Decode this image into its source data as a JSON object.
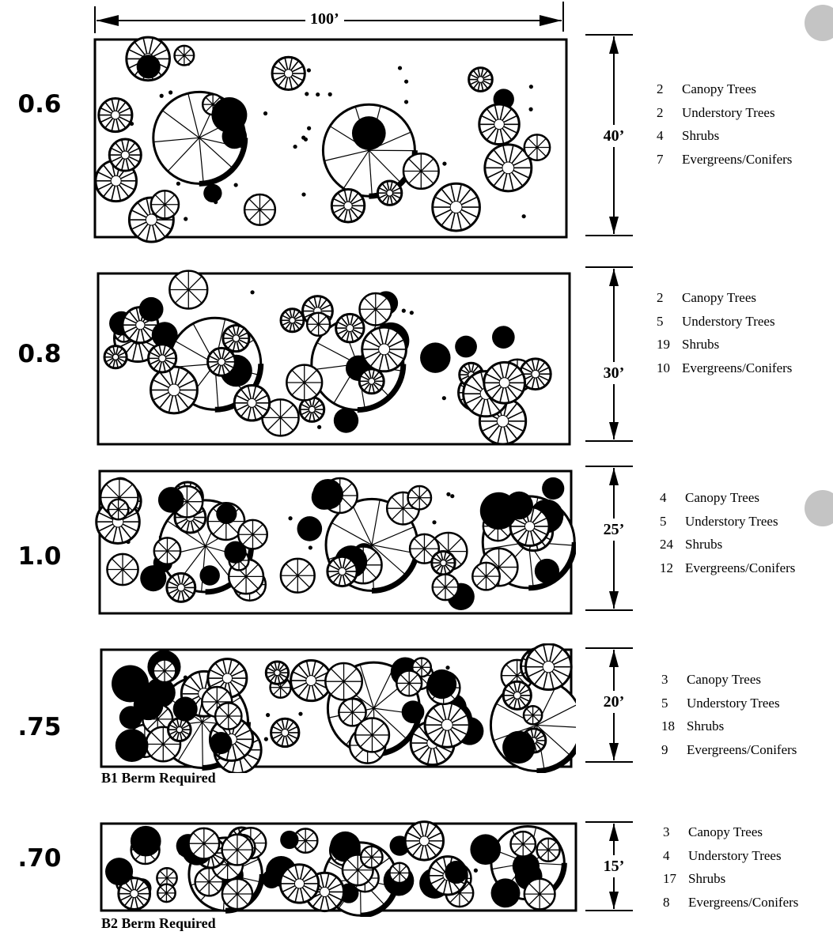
{
  "overall_width": "100’",
  "panels": [
    {
      "opacity": "0.6",
      "width": "40’",
      "berm_note": "",
      "counts": [
        {
          "qty": "2",
          "label": "Canopy Trees"
        },
        {
          "qty": "2",
          "label": "Understory Trees"
        },
        {
          "qty": "4",
          "label": "Shrubs"
        },
        {
          "qty": "7",
          "label": "Evergreens/Conifers"
        }
      ]
    },
    {
      "opacity": "0.8",
      "width": "30’",
      "berm_note": "",
      "counts": [
        {
          "qty": "2",
          "label": "Canopy Trees"
        },
        {
          "qty": "5",
          "label": "Understory Trees"
        },
        {
          "qty": "19",
          "label": "Shrubs"
        },
        {
          "qty": "10",
          "label": "Evergreens/Conifers"
        }
      ]
    },
    {
      "opacity": "1.0",
      "width": "25’",
      "berm_note": "",
      "counts": [
        {
          "qty": "4",
          "label": "Canopy Trees"
        },
        {
          "qty": "5",
          "label": "Understory Trees"
        },
        {
          "qty": "24",
          "label": "Shrubs"
        },
        {
          "qty": "12",
          "label": "Evergreens/Conifers"
        }
      ]
    },
    {
      "opacity": ".75",
      "width": "20’",
      "berm_note": "B1 Berm Required",
      "counts": [
        {
          "qty": "3",
          "label": "Canopy Trees"
        },
        {
          "qty": "5",
          "label": "Understory Trees"
        },
        {
          "qty": "18",
          "label": "Shrubs"
        },
        {
          "qty": "9",
          "label": "Evergreens/Conifers"
        }
      ]
    },
    {
      "opacity": ".70",
      "width": "15’",
      "berm_note": "B2 Berm Required",
      "counts": [
        {
          "qty": "3",
          "label": "Canopy Trees"
        },
        {
          "qty": "4",
          "label": "Understory Trees"
        },
        {
          "qty": "17",
          "label": "Shrubs"
        },
        {
          "qty": "8",
          "label": "Evergreens/Conifers"
        }
      ]
    }
  ],
  "colors": {
    "ink": "#000000",
    "paper": "#ffffff",
    "punch_hole": "#c4c4c4"
  },
  "icons": [
    "canopy-tree-symbol",
    "understory-tree-symbol",
    "shrub-symbol",
    "evergreen-symbol"
  ]
}
